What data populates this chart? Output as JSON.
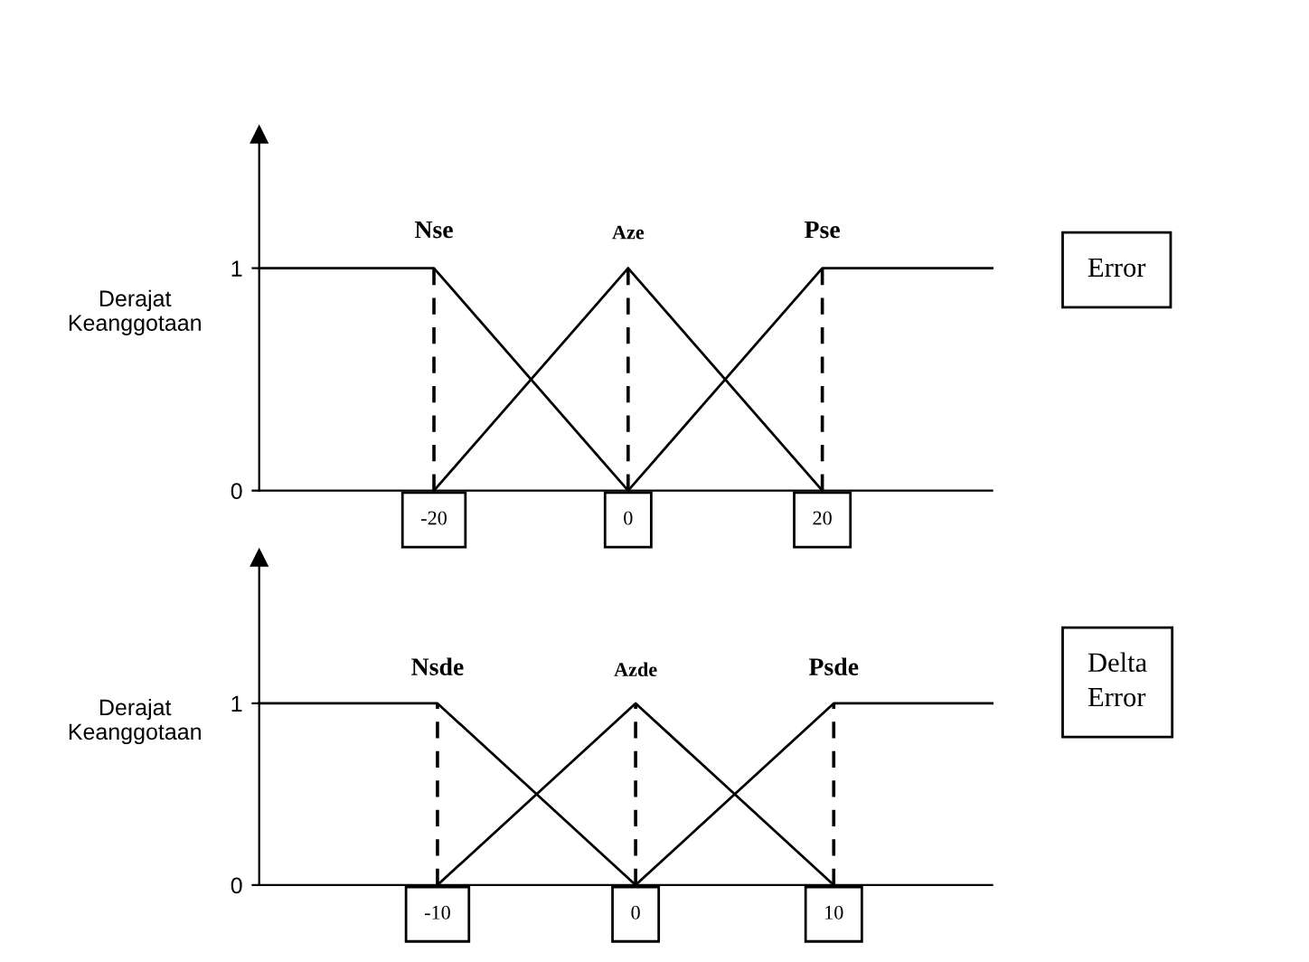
{
  "chart_data": [
    {
      "type": "line",
      "ylabel": "Derajat\nKeanggotaan",
      "xlim": [
        -38,
        37.5
      ],
      "ylim": [
        0,
        1.6
      ],
      "xticks": [
        -20,
        0,
        20
      ],
      "yticks": [
        0,
        1
      ],
      "grid": false,
      "legend": false,
      "marker": "none",
      "line_style": "solid",
      "series": [
        {
          "name": "Nse",
          "color": "#000000",
          "x": [
            -38,
            -20,
            0
          ],
          "values": [
            1,
            1,
            0
          ]
        },
        {
          "name": "Aze",
          "color": "#000000",
          "x": [
            -20,
            0,
            20
          ],
          "values": [
            0,
            1,
            0
          ]
        },
        {
          "name": "Pse",
          "color": "#000000",
          "x": [
            0,
            20,
            37.5
          ],
          "values": [
            0,
            1,
            1
          ]
        }
      ],
      "ref_lines": [
        {
          "axis": "x",
          "value": -20,
          "color": "#000000",
          "line_style": "dashed"
        },
        {
          "axis": "x",
          "value": 0,
          "color": "#000000",
          "line_style": "dashed"
        },
        {
          "axis": "x",
          "value": 20,
          "color": "#000000",
          "line_style": "dashed"
        }
      ],
      "annotations": [
        "Error"
      ]
    },
    {
      "type": "line",
      "ylabel": "Derajat\nKeanggotaan",
      "xlim": [
        -19,
        18
      ],
      "ylim": [
        0,
        1.8
      ],
      "xticks": [
        -10,
        0,
        10
      ],
      "yticks": [
        0,
        1
      ],
      "grid": false,
      "legend": false,
      "marker": "none",
      "line_style": "solid",
      "series": [
        {
          "name": "Nsde",
          "color": "#000000",
          "x": [
            -19,
            -10,
            0
          ],
          "values": [
            1,
            1,
            0
          ]
        },
        {
          "name": "Azde",
          "color": "#000000",
          "x": [
            -10,
            0,
            10
          ],
          "values": [
            0,
            1,
            0
          ]
        },
        {
          "name": "Psde",
          "color": "#000000",
          "x": [
            0,
            10,
            18
          ],
          "values": [
            0,
            1,
            1
          ]
        }
      ],
      "ref_lines": [
        {
          "axis": "x",
          "value": -10,
          "color": "#000000",
          "line_style": "dashed"
        },
        {
          "axis": "x",
          "value": 0,
          "color": "#000000",
          "line_style": "dashed"
        },
        {
          "axis": "x",
          "value": 10,
          "color": "#000000",
          "line_style": "dashed"
        }
      ],
      "annotations": [
        "Delta\nError"
      ]
    }
  ]
}
